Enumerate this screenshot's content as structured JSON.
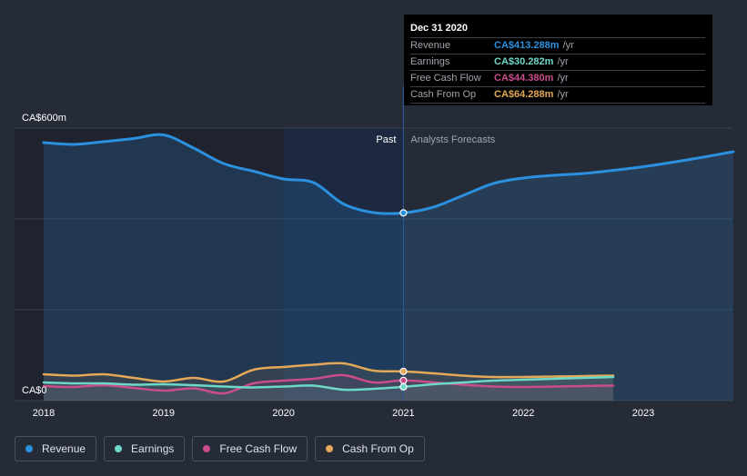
{
  "chart_data": {
    "type": "area",
    "y_axis": {
      "ylim": [
        0,
        600
      ],
      "labels": [
        "CA$600m",
        "CA$0"
      ]
    },
    "x_axis": {
      "xlim": [
        2018,
        2023.75
      ],
      "tick_labels": [
        "2018",
        "2019",
        "2020",
        "2021",
        "2022",
        "2023"
      ],
      "ticks": [
        2018,
        2019,
        2020,
        2021,
        2022,
        2023
      ]
    },
    "regions": {
      "past_label": "Past",
      "forecast_label": "Analysts Forecasts",
      "divider_x": 2021,
      "highlight_start_x": 2020
    },
    "series": [
      {
        "name": "Revenue",
        "color": "#2b90de",
        "points": [
          [
            2018,
            568
          ],
          [
            2018.25,
            564
          ],
          [
            2018.5,
            570
          ],
          [
            2018.75,
            577
          ],
          [
            2019,
            585
          ],
          [
            2019.25,
            556
          ],
          [
            2019.5,
            522
          ],
          [
            2019.75,
            505
          ],
          [
            2020,
            488
          ],
          [
            2020.25,
            480
          ],
          [
            2020.5,
            433
          ],
          [
            2020.75,
            414
          ],
          [
            2021,
            413.288
          ],
          [
            2021.25,
            426
          ],
          [
            2021.5,
            452
          ],
          [
            2021.75,
            478
          ],
          [
            2022,
            490
          ],
          [
            2022.25,
            496
          ],
          [
            2022.5,
            500
          ],
          [
            2022.75,
            507
          ],
          [
            2023,
            515
          ],
          [
            2023.25,
            525
          ],
          [
            2023.5,
            536
          ],
          [
            2023.75,
            548
          ]
        ]
      },
      {
        "name": "Earnings",
        "color": "#6ed8c8",
        "points": [
          [
            2018,
            40
          ],
          [
            2018.25,
            38
          ],
          [
            2018.5,
            38
          ],
          [
            2018.75,
            35
          ],
          [
            2019,
            36
          ],
          [
            2019.25,
            34
          ],
          [
            2019.5,
            31
          ],
          [
            2019.75,
            29
          ],
          [
            2020,
            31
          ],
          [
            2020.25,
            33
          ],
          [
            2020.5,
            24
          ],
          [
            2020.75,
            26
          ],
          [
            2021,
            30.282
          ],
          [
            2021.25,
            36
          ],
          [
            2021.5,
            40
          ],
          [
            2021.75,
            44
          ],
          [
            2022,
            46
          ],
          [
            2022.25,
            48
          ],
          [
            2022.5,
            50
          ],
          [
            2022.75,
            52
          ]
        ]
      },
      {
        "name": "Free Cash Flow",
        "color": "#c94d8a",
        "points": [
          [
            2018,
            32
          ],
          [
            2018.25,
            30
          ],
          [
            2018.5,
            34
          ],
          [
            2018.75,
            28
          ],
          [
            2019,
            22
          ],
          [
            2019.25,
            27
          ],
          [
            2019.5,
            16
          ],
          [
            2019.75,
            38
          ],
          [
            2020,
            44
          ],
          [
            2020.25,
            48
          ],
          [
            2020.5,
            56
          ],
          [
            2020.75,
            40
          ],
          [
            2021,
            44.38
          ],
          [
            2021.25,
            40
          ],
          [
            2021.5,
            35
          ],
          [
            2021.75,
            31
          ],
          [
            2022,
            30
          ],
          [
            2022.25,
            31
          ],
          [
            2022.5,
            32
          ],
          [
            2022.75,
            33
          ]
        ]
      },
      {
        "name": "Cash From Op",
        "color": "#e3a858",
        "points": [
          [
            2018,
            58
          ],
          [
            2018.25,
            55
          ],
          [
            2018.5,
            58
          ],
          [
            2018.75,
            50
          ],
          [
            2019,
            42
          ],
          [
            2019.25,
            50
          ],
          [
            2019.5,
            42
          ],
          [
            2019.75,
            68
          ],
          [
            2020,
            74
          ],
          [
            2020.25,
            79
          ],
          [
            2020.5,
            82
          ],
          [
            2020.75,
            66
          ],
          [
            2021,
            64.288
          ],
          [
            2021.25,
            60
          ],
          [
            2021.5,
            55
          ],
          [
            2021.75,
            52
          ],
          [
            2022,
            52
          ],
          [
            2022.25,
            53
          ],
          [
            2022.5,
            54
          ],
          [
            2022.75,
            55
          ]
        ]
      }
    ]
  },
  "tooltip": {
    "date": "Dec 31 2020",
    "rows": [
      {
        "label": "Revenue",
        "value": "CA$413.288m",
        "unit": "/yr",
        "color": "#2b90de"
      },
      {
        "label": "Earnings",
        "value": "CA$30.282m",
        "unit": "/yr",
        "color": "#6ed8c8"
      },
      {
        "label": "Free Cash Flow",
        "value": "CA$44.380m",
        "unit": "/yr",
        "color": "#c94d8a"
      },
      {
        "label": "Cash From Op",
        "value": "CA$64.288m",
        "unit": "/yr",
        "color": "#e3a858"
      }
    ]
  },
  "legend": [
    {
      "label": "Revenue",
      "color": "#2b90de"
    },
    {
      "label": "Earnings",
      "color": "#6ed8c8"
    },
    {
      "label": "Free Cash Flow",
      "color": "#c94d8a"
    },
    {
      "label": "Cash From Op",
      "color": "#e3a858"
    }
  ]
}
